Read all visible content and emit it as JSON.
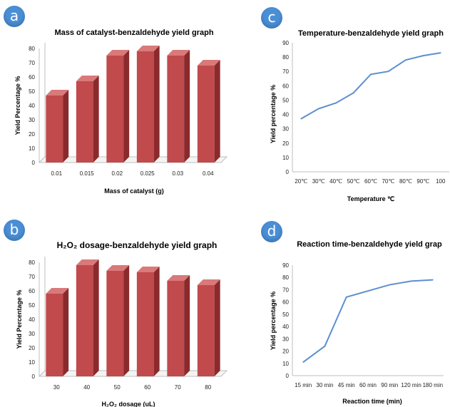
{
  "colors": {
    "badge": "#4a8fd6",
    "bar_front": "#c14a4c",
    "bar_side": "#8a2a2c",
    "bar_top": "#d9797a",
    "line": "#5b8fcf",
    "axis": "#bfbfbf"
  },
  "panels": {
    "a": {
      "badge": "a"
    },
    "b": {
      "badge": "b"
    },
    "c": {
      "badge": "c"
    },
    "d": {
      "badge": "d"
    }
  },
  "chart_data": [
    {
      "id": "a",
      "type": "bar",
      "title": "Mass of catalyst-benzaldehyde yield graph",
      "xlabel": "Mass of catalyst (g)",
      "ylabel": "Yield Percentage %",
      "categories": [
        "0.01",
        "0.015",
        "0.02",
        "0.025",
        "0.03",
        "0.04"
      ],
      "values": [
        47,
        57,
        75,
        78,
        75,
        68
      ],
      "ylim": [
        0,
        80
      ],
      "yticks": [
        "0",
        "10",
        "20",
        "30",
        "40",
        "50",
        "60",
        "70",
        "80"
      ],
      "grid": false,
      "legend": "none"
    },
    {
      "id": "b",
      "type": "bar",
      "title": "H₂O₂ dosage-benzaldehyde yield graph",
      "xlabel": "H₂O₂ dosage (uL)",
      "ylabel": "Yield Percentage %",
      "categories": [
        "30",
        "40",
        "50",
        "60",
        "70",
        "80"
      ],
      "values": [
        58,
        78,
        74,
        73,
        67,
        64
      ],
      "ylim": [
        0,
        80
      ],
      "yticks": [
        "0",
        "10",
        "20",
        "30",
        "40",
        "50",
        "60",
        "70",
        "80"
      ],
      "grid": false,
      "legend": "none"
    },
    {
      "id": "c",
      "type": "line",
      "title": "Temperature-benzaldehyde yield graph",
      "xlabel": "Temperature ℃",
      "ylabel": "Yield percentage %",
      "x": [
        "20℃",
        "30℃",
        "40℃",
        "50℃",
        "60℃",
        "70℃",
        "80℃",
        "90℃",
        "100"
      ],
      "values": [
        37,
        44,
        48,
        55,
        68,
        70,
        78,
        81,
        83
      ],
      "ylim": [
        0,
        90
      ],
      "yticks": [
        "0",
        "10",
        "20",
        "30",
        "40",
        "50",
        "60",
        "70",
        "80",
        "90"
      ],
      "grid": false,
      "legend": "none"
    },
    {
      "id": "d",
      "type": "line",
      "title": "Reaction time-benzaldehyde yield grap",
      "xlabel": "Reaction time (min)",
      "ylabel": "Yield percentage %",
      "x": [
        "15 min",
        "30 min",
        "45 min",
        "60 min",
        "90 min",
        "120 min",
        "180 min"
      ],
      "values": [
        11,
        24,
        64,
        69,
        74,
        77,
        78
      ],
      "ylim": [
        0,
        90
      ],
      "yticks": [
        "0",
        "10",
        "20",
        "30",
        "40",
        "50",
        "60",
        "70",
        "80",
        "90"
      ],
      "grid": false,
      "legend": "none"
    }
  ]
}
